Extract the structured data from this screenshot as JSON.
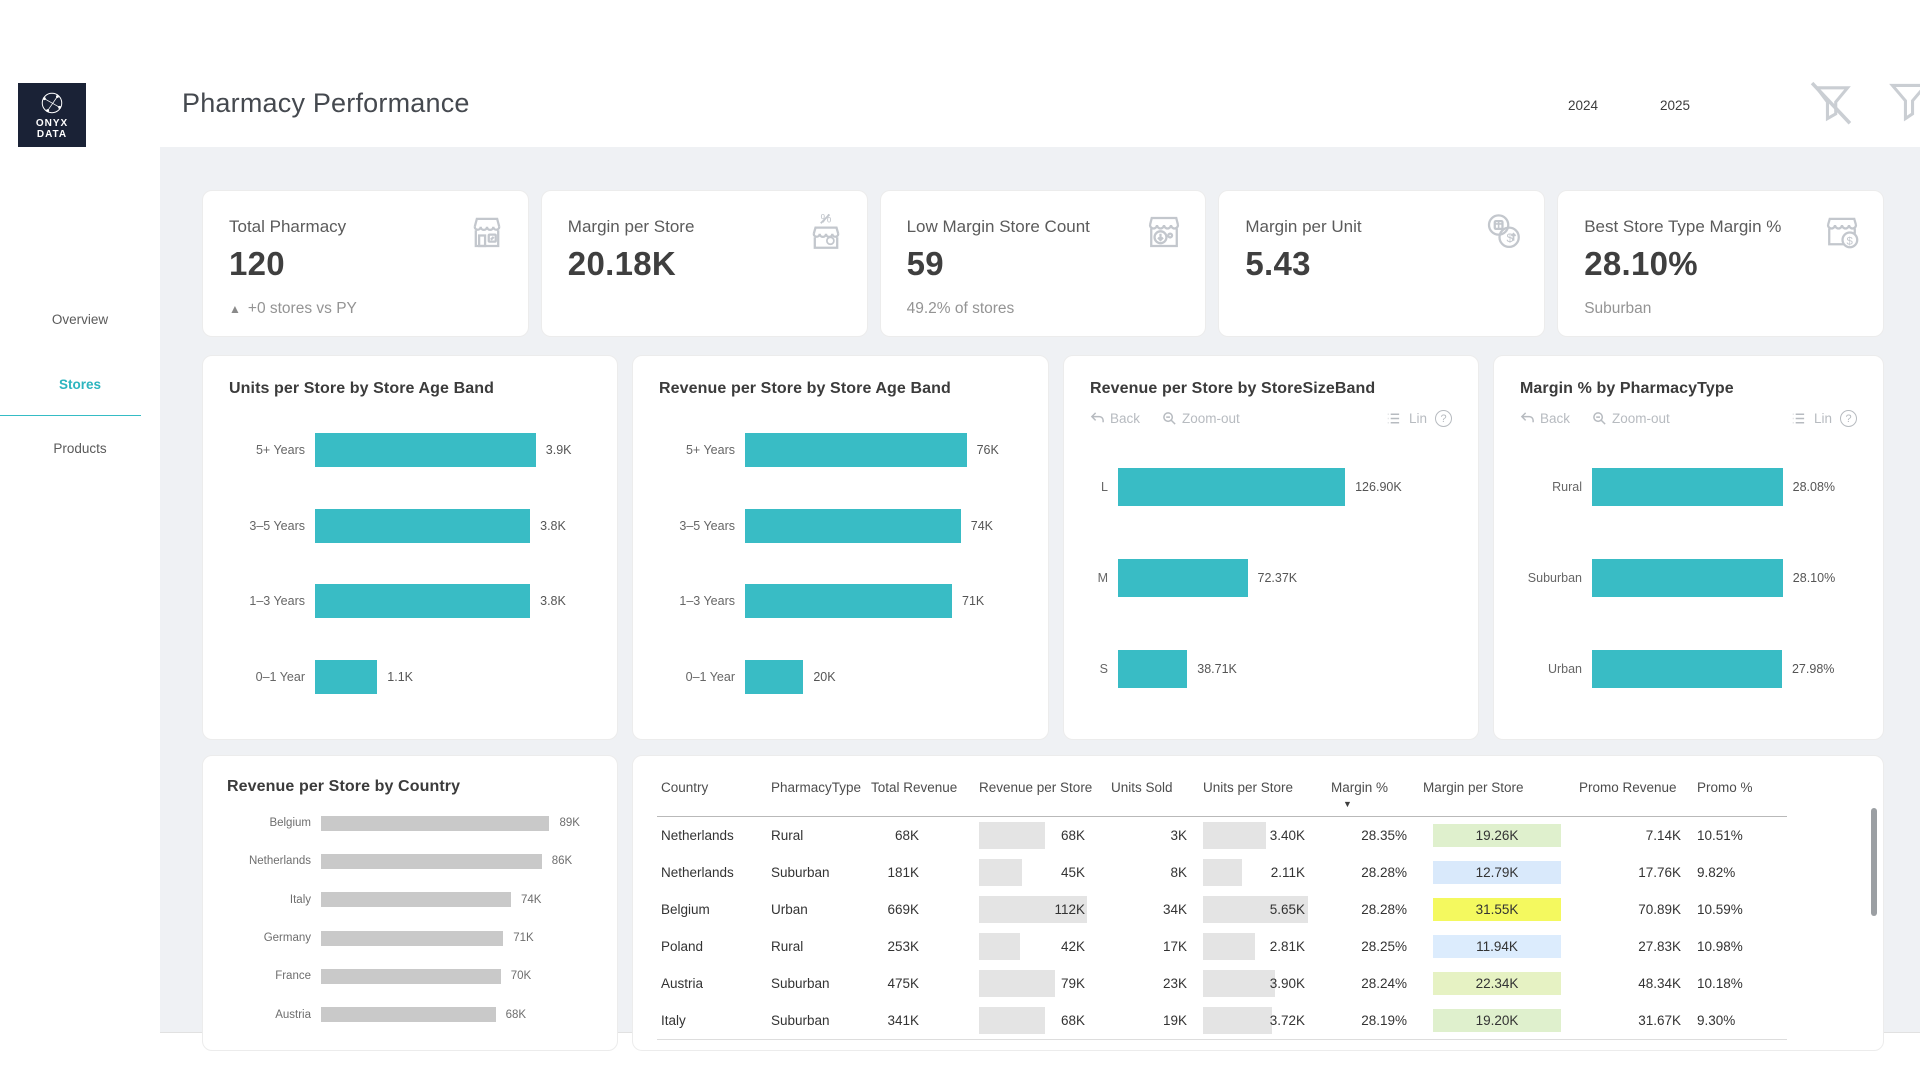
{
  "brand": {
    "name": "ONYX DATA",
    "line1": "ONYX",
    "line2": "DATA"
  },
  "header": {
    "title": "Pharmacy Performance",
    "year_2024": "2024",
    "year_2025": "2025"
  },
  "sidebar": {
    "items": [
      {
        "label": "Overview",
        "active": false
      },
      {
        "label": "Stores",
        "active": true
      },
      {
        "label": "Products",
        "active": false
      }
    ]
  },
  "icons": {
    "delta_up": "▲",
    "sort_desc": "▼",
    "help": "?"
  },
  "toolbar": {
    "back": "Back",
    "zoom_out": "Zoom-out",
    "lin": "Lin"
  },
  "colors": {
    "accent_teal": "#39bcc5",
    "gray_bar": "#c9c9c9",
    "page_bg": "#eff1f4",
    "logo_navy": "#1a2236"
  },
  "kpis": [
    {
      "label": "Total Pharmacy",
      "value": "120",
      "sub": "+0 stores vs PY",
      "icon": "pharmacy-store-icon",
      "has_delta": true
    },
    {
      "label": "Margin per Store",
      "value": "20.18K",
      "sub": "",
      "icon": "store-percent-icon",
      "has_delta": false
    },
    {
      "label": "Low Margin Store Count",
      "value": "59",
      "sub": "49.2% of stores",
      "icon": "store-arrow-down-icon",
      "has_delta": false
    },
    {
      "label": "Margin per Unit",
      "value": "5.43",
      "sub": "",
      "icon": "unit-dollar-icon",
      "has_delta": false
    },
    {
      "label": "Best Store Type Margin %",
      "value": "28.10%",
      "sub": "Suburban",
      "icon": "store-dollar-icon",
      "has_delta": false
    }
  ],
  "chart_data": [
    {
      "id": "units_by_age",
      "type": "bar",
      "orientation": "horizontal",
      "title": "Units per Store by Store Age Band",
      "categories": [
        "5+ Years",
        "3–5 Years",
        "1–3 Years",
        "0–1 Year"
      ],
      "values": [
        3900,
        3800,
        3800,
        1100
      ],
      "labels": [
        "3.9K",
        "3.8K",
        "3.8K",
        "1.1K"
      ],
      "bar_color": "#39bcc5",
      "xlim": [
        0,
        3900
      ],
      "grid": false,
      "legend": false
    },
    {
      "id": "revenue_by_age",
      "type": "bar",
      "orientation": "horizontal",
      "title": "Revenue per Store by Store Age Band",
      "categories": [
        "5+ Years",
        "3–5 Years",
        "1–3 Years",
        "0–1 Year"
      ],
      "values": [
        76000,
        74000,
        71000,
        20000
      ],
      "labels": [
        "76K",
        "74K",
        "71K",
        "20K"
      ],
      "bar_color": "#39bcc5",
      "xlim": [
        0,
        76000
      ],
      "grid": false,
      "legend": false
    },
    {
      "id": "revenue_by_size",
      "type": "bar",
      "orientation": "horizontal",
      "title": "Revenue per Store by StoreSizeBand",
      "categories": [
        "L",
        "M",
        "S"
      ],
      "values": [
        126900,
        72370,
        38710
      ],
      "labels": [
        "126.90K",
        "72.37K",
        "38.71K"
      ],
      "bar_color": "#39bcc5",
      "xlim": [
        0,
        126900
      ],
      "grid": false,
      "legend": false,
      "has_toolbar": true
    },
    {
      "id": "margin_by_type",
      "type": "bar",
      "orientation": "horizontal",
      "title": "Margin % by PharmacyType",
      "categories": [
        "Rural",
        "Suburban",
        "Urban"
      ],
      "values": [
        28.08,
        28.1,
        27.98
      ],
      "labels": [
        "28.08%",
        "28.10%",
        "27.98%"
      ],
      "bar_color": "#39bcc5",
      "xlim": [
        0,
        28.1
      ],
      "grid": false,
      "legend": false,
      "has_toolbar": true
    },
    {
      "id": "revenue_by_country",
      "type": "bar",
      "orientation": "horizontal",
      "title": "Revenue per Store by Country",
      "categories": [
        "Belgium",
        "Netherlands",
        "Italy",
        "Germany",
        "France",
        "Austria"
      ],
      "values": [
        89000,
        86000,
        74000,
        71000,
        70000,
        68000
      ],
      "labels": [
        "89K",
        "86K",
        "74K",
        "71K",
        "70K",
        "68K"
      ],
      "bar_color": "#c9c9c9",
      "xlim": [
        0,
        89000
      ],
      "grid": false,
      "legend": false
    }
  ],
  "table": {
    "columns": [
      "Country",
      "PharmacyType",
      "Total Revenue",
      "Revenue per Store",
      "Units Sold",
      "Units per Store",
      "Margin %",
      "Margin per Store",
      "Promo Revenue",
      "Promo %"
    ],
    "sort_column": "Margin %",
    "sort_direction": "descending",
    "rows": [
      {
        "country": "Netherlands",
        "pharmacy_type": "Rural",
        "total_revenue": "68K",
        "revenue_per_store": "68K",
        "rps_val": 68,
        "units_sold": "3K",
        "units_per_store": "3.40K",
        "ups_val": 3.4,
        "margin_pct": "28.35%",
        "margin_per_store": "19.26K",
        "margin_bg": "#dff0cd",
        "promo_revenue": "7.14K",
        "promo_pct": "10.51%"
      },
      {
        "country": "Netherlands",
        "pharmacy_type": "Suburban",
        "total_revenue": "181K",
        "revenue_per_store": "45K",
        "rps_val": 45,
        "units_sold": "8K",
        "units_per_store": "2.11K",
        "ups_val": 2.11,
        "margin_pct": "28.28%",
        "margin_per_store": "12.79K",
        "margin_bg": "#d9e9fb",
        "promo_revenue": "17.76K",
        "promo_pct": "9.82%"
      },
      {
        "country": "Belgium",
        "pharmacy_type": "Urban",
        "total_revenue": "669K",
        "revenue_per_store": "112K",
        "rps_val": 112,
        "units_sold": "34K",
        "units_per_store": "5.65K",
        "ups_val": 5.65,
        "margin_pct": "28.28%",
        "margin_per_store": "31.55K",
        "margin_bg": "#f4f95f",
        "promo_revenue": "70.89K",
        "promo_pct": "10.59%"
      },
      {
        "country": "Poland",
        "pharmacy_type": "Rural",
        "total_revenue": "253K",
        "revenue_per_store": "42K",
        "rps_val": 42,
        "units_sold": "17K",
        "units_per_store": "2.81K",
        "ups_val": 2.81,
        "margin_pct": "28.25%",
        "margin_per_store": "11.94K",
        "margin_bg": "#dcecfd",
        "promo_revenue": "27.83K",
        "promo_pct": "10.98%"
      },
      {
        "country": "Austria",
        "pharmacy_type": "Suburban",
        "total_revenue": "475K",
        "revenue_per_store": "79K",
        "rps_val": 79,
        "units_sold": "23K",
        "units_per_store": "3.90K",
        "ups_val": 3.9,
        "margin_pct": "28.24%",
        "margin_per_store": "22.34K",
        "margin_bg": "#e6f2c3",
        "promo_revenue": "48.34K",
        "promo_pct": "10.18%"
      },
      {
        "country": "Italy",
        "pharmacy_type": "Suburban",
        "total_revenue": "341K",
        "revenue_per_store": "68K",
        "rps_val": 68,
        "units_sold": "19K",
        "units_per_store": "3.72K",
        "ups_val": 3.72,
        "margin_pct": "28.19%",
        "margin_per_store": "19.20K",
        "margin_bg": "#dff0cd",
        "promo_revenue": "31.67K",
        "promo_pct": "9.30%"
      }
    ]
  }
}
